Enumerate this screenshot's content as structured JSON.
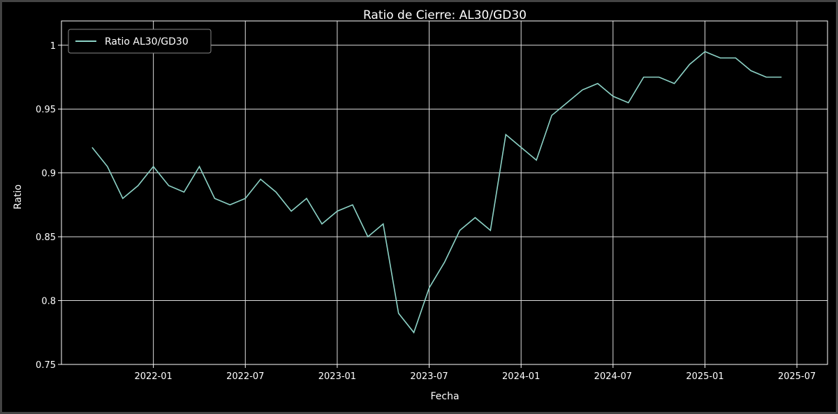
{
  "chart_data": {
    "type": "line",
    "title": "Ratio de Cierre: AL30/GD30",
    "x_label": "Fecha",
    "y_label": "Ratio",
    "x": [
      "2021-09",
      "2021-10",
      "2021-11",
      "2021-12",
      "2022-01",
      "2022-02",
      "2022-03",
      "2022-04",
      "2022-05",
      "2022-06",
      "2022-07",
      "2022-08",
      "2022-09",
      "2022-10",
      "2022-11",
      "2022-12",
      "2023-01",
      "2023-02",
      "2023-03",
      "2023-04",
      "2023-05",
      "2023-06",
      "2023-07",
      "2023-08",
      "2023-09",
      "2023-10",
      "2023-11",
      "2023-12",
      "2024-01",
      "2024-02",
      "2024-03",
      "2024-04",
      "2024-05",
      "2024-06",
      "2024-07",
      "2024-08",
      "2024-09",
      "2024-10",
      "2024-11",
      "2024-12",
      "2025-01",
      "2025-02",
      "2025-03",
      "2025-04",
      "2025-05",
      "2025-06"
    ],
    "series": [
      {
        "name": "Ratio AL30/GD30",
        "color": "#8dd3c7",
        "values": [
          0.92,
          0.905,
          0.88,
          0.89,
          0.905,
          0.89,
          0.885,
          0.905,
          0.88,
          0.875,
          0.88,
          0.895,
          0.885,
          0.87,
          0.88,
          0.86,
          0.87,
          0.875,
          0.85,
          0.86,
          0.79,
          0.775,
          0.81,
          0.83,
          0.855,
          0.865,
          0.855,
          0.93,
          0.92,
          0.91,
          0.945,
          0.955,
          0.965,
          0.97,
          0.96,
          0.955,
          0.975,
          0.975,
          0.97,
          0.985,
          0.995,
          0.99,
          0.99,
          0.98,
          0.975,
          0.975
        ]
      }
    ],
    "xlim": [
      "2021-07",
      "2025-09"
    ],
    "xticks": [
      "2022-01",
      "2022-07",
      "2023-01",
      "2023-07",
      "2024-01",
      "2024-07",
      "2025-01",
      "2025-07"
    ],
    "ylim": [
      0.75,
      1.019
    ],
    "yticks": [
      0.75,
      0.8,
      0.85,
      0.9,
      0.95,
      1.0
    ],
    "grid": true,
    "legend": "upper-left"
  }
}
